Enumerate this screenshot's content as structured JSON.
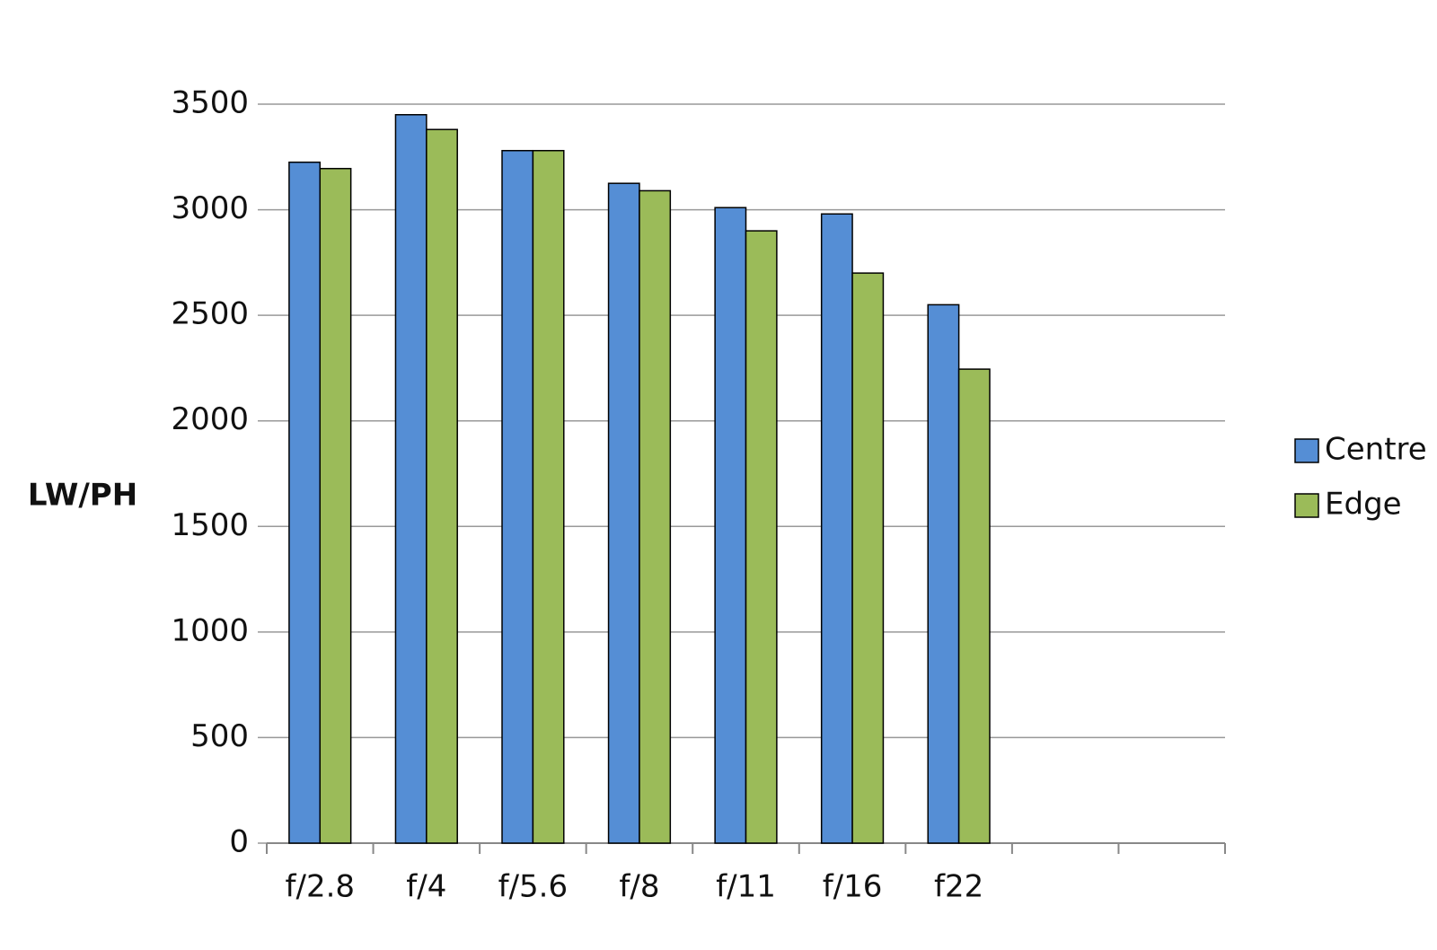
{
  "chart_data": {
    "type": "bar",
    "y_label": "LW/PH",
    "categories": [
      "f/2.8",
      "f/4",
      "f/5.6",
      "f/8",
      "f/11",
      "f/16",
      "f22",
      null,
      null
    ],
    "series": [
      {
        "name": "Centre",
        "color": "#558ed5",
        "values": [
          3225,
          3450,
          3280,
          3125,
          3010,
          2980,
          2550,
          null,
          null
        ]
      },
      {
        "name": "Edge",
        "color": "#9bbb59",
        "values": [
          3195,
          3380,
          3280,
          3090,
          2900,
          2700,
          2245,
          null,
          null
        ]
      }
    ],
    "ylim": [
      0,
      3500
    ],
    "yticks": [
      0,
      500,
      1000,
      1500,
      2000,
      2500,
      3000,
      3500
    ],
    "grid": true,
    "legend": "right"
  }
}
